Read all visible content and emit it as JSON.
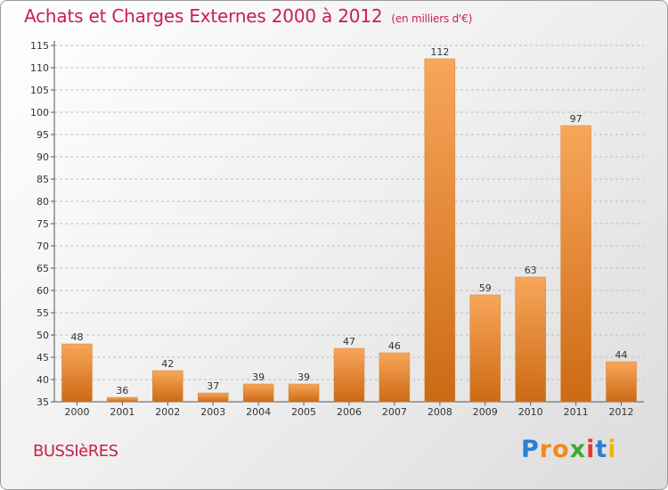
{
  "header": {
    "title": "Achats et Charges Externes 2000 à 2012",
    "unit": "(en milliers d'€)"
  },
  "commune": "BUSSIèRES",
  "logo": {
    "letters": [
      "P",
      "r",
      "o",
      "x",
      "i",
      "t",
      "i"
    ],
    "colors": [
      "#2a7fd4",
      "#f08a1c",
      "#f08a1c",
      "#3aaa35",
      "#e53a2f",
      "#2a7fd4",
      "#f4b400"
    ]
  },
  "colors": {
    "bar_light": "#f8a65a",
    "bar_dark": "#cc6a14",
    "grid": "#bdbdbd",
    "axis": "#555555",
    "accent": "#c8214a"
  },
  "chart_data": {
    "type": "bar",
    "title": "Achats et Charges Externes 2000 à 2012",
    "subtitle": "(en milliers d'€)",
    "xlabel": "",
    "ylabel": "",
    "categories": [
      "2000",
      "2001",
      "2002",
      "2003",
      "2004",
      "2005",
      "2006",
      "2007",
      "2008",
      "2009",
      "2010",
      "2011",
      "2012"
    ],
    "values": [
      48,
      36,
      42,
      37,
      39,
      39,
      47,
      46,
      112,
      59,
      63,
      97,
      44
    ],
    "ylim": [
      35,
      115
    ],
    "yticks": [
      35,
      40,
      45,
      50,
      55,
      60,
      65,
      70,
      75,
      80,
      85,
      90,
      95,
      100,
      105,
      110,
      115
    ],
    "grid": true
  }
}
